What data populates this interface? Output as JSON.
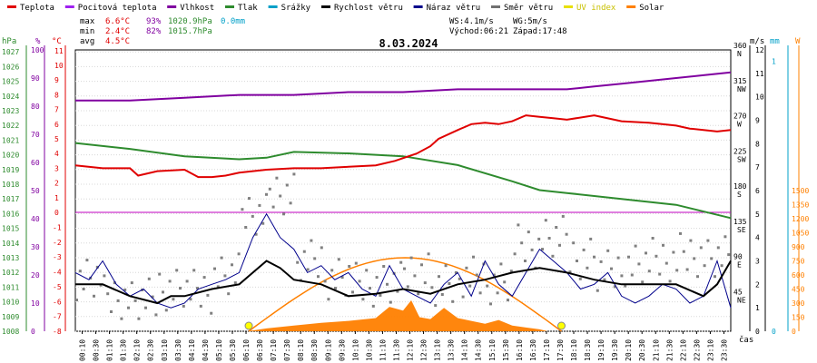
{
  "legend": [
    {
      "label": "Teplota",
      "color": "#e00000"
    },
    {
      "label": "Pocitová teplota",
      "color": "#a020f0"
    },
    {
      "label": "Vlhkost",
      "color": "#8000a0"
    },
    {
      "label": "Tlak",
      "color": "#2e8b2e"
    },
    {
      "label": "Srážky",
      "color": "#00a0c8"
    },
    {
      "label": "Rychlost větru",
      "color": "#000000"
    },
    {
      "label": "Náraz větru",
      "color": "#00008b"
    },
    {
      "label": "Směr větru",
      "color": "#707070"
    },
    {
      "label": "UV index",
      "color": "#e8e000"
    },
    {
      "label": "Solar",
      "color": "#ff8000"
    }
  ],
  "stats": {
    "max": {
      "label": "max",
      "temp": "6.6°C",
      "hum": "93%",
      "press": "1020.9hPa",
      "rain": "0.0mm"
    },
    "min": {
      "label": "min",
      "temp": "2.4°C",
      "hum": "82%",
      "press": "1015.7hPa"
    },
    "avg": {
      "label": "avg",
      "temp": "4.5°C"
    }
  },
  "wind_info": {
    "ws": "WS:4.1m/s",
    "wg": "WG:5m/s"
  },
  "sun": {
    "sunrise": "Východ:06:21",
    "sunset": "Západ:17:48"
  },
  "unit_labels": {
    "hpa": "hPa",
    "pct": "%",
    "degc": "°C",
    "ms": "m/s",
    "mm": "mm",
    "w": "W",
    "cas": "čas"
  },
  "chart_data": {
    "type": "line",
    "title": "8.03.2024",
    "x": [
      "00:10",
      "00:30",
      "01:10",
      "01:30",
      "02:10",
      "02:30",
      "03:10",
      "03:30",
      "04:10",
      "04:30",
      "05:10",
      "05:30",
      "06:10",
      "06:30",
      "07:10",
      "07:30",
      "08:10",
      "08:30",
      "09:10",
      "09:30",
      "10:10",
      "10:30",
      "11:10",
      "11:30",
      "12:10",
      "12:30",
      "13:10",
      "13:30",
      "14:10",
      "14:30",
      "15:10",
      "15:30",
      "16:10",
      "16:30",
      "17:10",
      "17:30",
      "18:10",
      "18:30",
      "19:10",
      "19:30",
      "20:10",
      "20:30",
      "21:10",
      "21:30",
      "22:10",
      "22:30",
      "23:10",
      "23:30"
    ],
    "axes": {
      "pressure_hpa": {
        "ticks": [
          1008,
          1009,
          1010,
          1011,
          1012,
          1013,
          1014,
          1015,
          1016,
          1017,
          1018,
          1019,
          1020,
          1021,
          1022,
          1023,
          1024,
          1025,
          1026,
          1027
        ]
      },
      "humidity_pct": {
        "ticks": [
          0,
          10,
          20,
          30,
          40,
          50,
          60,
          70,
          80,
          90,
          100
        ]
      },
      "temp_upper_c": {
        "ticks": [
          0,
          1,
          2,
          3,
          4,
          5,
          6,
          7,
          8,
          9,
          10,
          11
        ]
      },
      "temp_lower_c": {
        "ticks": [
          -8,
          -7,
          -6,
          -5,
          -4,
          -3,
          -2,
          -1,
          0
        ]
      },
      "wind_dir_deg": {
        "ticks": [
          45,
          90,
          135,
          180,
          225,
          270,
          315,
          360
        ],
        "dir_labels": [
          "NE",
          "E",
          "SE",
          "S",
          "SW",
          "W",
          "NW",
          "N"
        ]
      },
      "wind_ms": {
        "ticks": [
          0,
          1,
          2,
          3,
          4,
          5,
          6,
          7,
          8,
          9,
          10,
          11,
          12
        ]
      },
      "rain_mm": {
        "ticks": [
          0,
          1
        ]
      },
      "solar_w": {
        "ticks": [
          0,
          150,
          300,
          450,
          600,
          750,
          900,
          1050,
          1200,
          1350,
          1500
        ]
      }
    },
    "series": [
      {
        "name": "Teplota",
        "unit": "°C",
        "x": [
          0.0,
          1.0,
          2.0,
          2.3,
          3.0,
          4.0,
          4.5,
          5.0,
          5.5,
          6.0,
          6.5,
          7.0,
          8.0,
          9.0,
          10.0,
          11.0,
          11.7,
          12.5,
          13.0,
          13.3,
          14.0,
          14.5,
          15.0,
          15.5,
          16.0,
          16.5,
          17.0,
          17.5,
          18.0,
          19.0,
          20.0,
          21.0,
          22.0,
          22.5,
          23.0,
          23.5,
          24.0
        ],
        "y": [
          3.2,
          3.0,
          3.0,
          2.5,
          2.8,
          2.9,
          2.4,
          2.4,
          2.5,
          2.7,
          2.8,
          2.9,
          3.0,
          3.0,
          3.1,
          3.2,
          3.5,
          4.0,
          4.5,
          5.0,
          5.6,
          6.0,
          6.1,
          6.0,
          6.2,
          6.6,
          6.5,
          6.4,
          6.3,
          6.6,
          6.2,
          6.1,
          5.9,
          5.7,
          5.6,
          5.5,
          5.6
        ]
      },
      {
        "name": "Vlhkost",
        "unit": "%",
        "x": [
          0,
          2,
          4,
          6,
          8,
          10,
          12,
          14,
          16,
          18,
          19,
          20,
          21,
          22,
          23,
          24
        ],
        "y": [
          82,
          82,
          83,
          84,
          84,
          85,
          85,
          86,
          86,
          86,
          87,
          88,
          89,
          90,
          91,
          92
        ]
      },
      {
        "name": "Tlak",
        "unit": "hPa",
        "x": [
          0,
          2,
          4,
          6,
          7,
          8,
          10,
          12,
          14,
          16,
          17,
          18,
          20,
          22,
          24
        ],
        "y": [
          1020.8,
          1020.4,
          1019.9,
          1019.7,
          1019.8,
          1020.2,
          1020.1,
          1019.9,
          1019.3,
          1018.2,
          1017.6,
          1017.4,
          1017.0,
          1016.6,
          1015.7
        ]
      },
      {
        "name": "Rychlost větru",
        "unit": "m/s",
        "x": [
          0,
          1,
          2,
          3,
          3.5,
          4,
          5,
          6,
          6.5,
          7,
          7.5,
          8,
          9,
          10,
          11,
          12,
          13,
          14,
          15,
          16,
          17,
          18,
          19,
          20,
          21,
          22,
          23,
          23.5,
          24
        ],
        "y": [
          2.0,
          2.0,
          1.5,
          1.2,
          1.5,
          1.5,
          1.8,
          2.0,
          2.5,
          3.0,
          2.7,
          2.2,
          2.0,
          1.5,
          1.6,
          1.8,
          1.6,
          2.0,
          2.2,
          2.5,
          2.7,
          2.5,
          2.2,
          2.0,
          2.0,
          2.0,
          1.5,
          2.0,
          3.0
        ]
      },
      {
        "name": "Náraz větru",
        "unit": "m/s",
        "x": [
          0,
          0.5,
          1,
          1.5,
          2,
          2.5,
          3,
          3.5,
          4,
          4.5,
          5,
          5.5,
          6,
          6.5,
          7,
          7.5,
          8,
          8.5,
          9,
          9.5,
          10,
          10.5,
          11,
          11.5,
          12,
          12.5,
          13,
          13.5,
          14,
          14.5,
          15,
          15.5,
          16,
          16.5,
          17,
          17.5,
          18,
          18.5,
          19,
          19.5,
          20,
          20.5,
          21,
          21.5,
          22,
          22.5,
          23,
          23.5,
          24
        ],
        "y": [
          2.5,
          2.2,
          3.0,
          2.0,
          1.5,
          1.8,
          1.2,
          1.0,
          1.2,
          1.8,
          2.0,
          2.2,
          2.5,
          4.0,
          5.0,
          4.0,
          3.5,
          2.5,
          2.8,
          2.2,
          2.5,
          1.8,
          1.5,
          2.8,
          1.8,
          1.5,
          1.2,
          2.0,
          2.5,
          1.5,
          3.0,
          2.0,
          1.5,
          2.5,
          3.5,
          3.0,
          2.5,
          1.8,
          2.0,
          2.5,
          1.5,
          1.2,
          1.5,
          2.0,
          1.8,
          1.2,
          1.5,
          3.0,
          1.0
        ]
      },
      {
        "name": "Solar",
        "unit": "W",
        "x": [
          6.3,
          7,
          8,
          9,
          10,
          11,
          11.5,
          12,
          12.3,
          12.6,
          13,
          13.5,
          14,
          14.5,
          15,
          15.5,
          16,
          16.5,
          17,
          17.3
        ],
        "y": [
          0,
          30,
          60,
          90,
          110,
          140,
          260,
          220,
          330,
          150,
          130,
          250,
          140,
          110,
          80,
          120,
          60,
          40,
          20,
          0
        ]
      },
      {
        "name": "Směr větru",
        "unit": "°",
        "x": [
          0.5,
          1.5,
          2.5,
          3.5,
          4.5,
          5.5,
          6.5,
          7.5,
          8.5,
          9.5,
          10.5,
          11.5,
          12.5,
          13.5,
          14.5,
          15.5,
          16.5,
          17.5,
          18.5,
          19.5,
          20.5,
          21.5,
          22.5,
          23.5
        ],
        "y": [
          70,
          45,
          40,
          55,
          50,
          70,
          150,
          180,
          90,
          70,
          60,
          60,
          75,
          55,
          70,
          65,
          110,
          120,
          95,
          75,
          85,
          90,
          100,
          95
        ]
      }
    ]
  }
}
